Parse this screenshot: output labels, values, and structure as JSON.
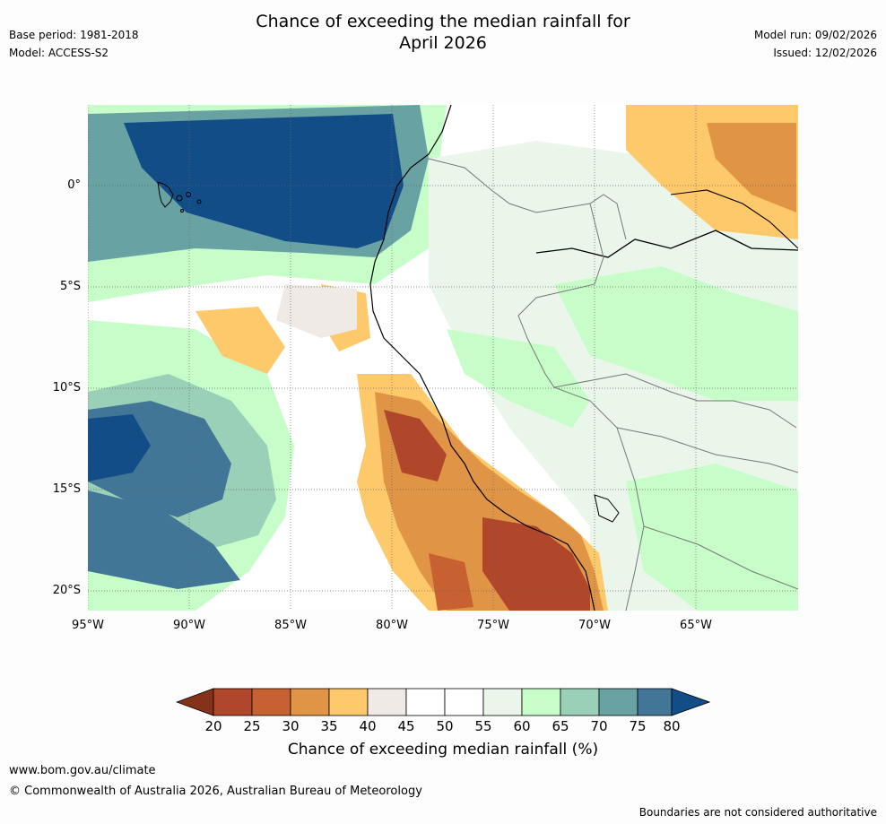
{
  "title_line1": "Chance of exceeding the median rainfall for",
  "title_line2": "April 2026",
  "meta": {
    "base_period": "Base period: 1981-2018",
    "model": "Model: ACCESS-S2",
    "model_run": "Model run: 09/02/2026",
    "issued": "Issued: 12/02/2026"
  },
  "axes": {
    "lat_labels": [
      "0°",
      "5°S",
      "10°S",
      "15°S",
      "20°S"
    ],
    "lon_labels": [
      "95°W",
      "90°W",
      "85°W",
      "80°W",
      "75°W",
      "70°W",
      "65°W"
    ]
  },
  "colorbar": {
    "ticks": [
      "20",
      "25",
      "30",
      "35",
      "40",
      "45",
      "50",
      "55",
      "60",
      "65",
      "70",
      "75",
      "80"
    ],
    "title": "Chance of exceeding median rainfall (%)",
    "colors": {
      "lt20": "#86321b",
      "20-25": "#b0462a",
      "25-30": "#c86131",
      "30-35": "#e09446",
      "35-40": "#fec96a",
      "40-45": "#efeae5",
      "45-50": "#ffffff",
      "50-55": "#ffffff",
      "55-60": "#eaf6ea",
      "60-65": "#c6fdc8",
      "65-70": "#9bd0b8",
      "70-75": "#69a2a3",
      "75-80": "#417696",
      "gt80": "#134d88"
    }
  },
  "footer": {
    "url": "www.bom.gov.au/climate",
    "copyright": "© Commonwealth of Australia 2026, Australian Bureau of Meteorology",
    "note": "Boundaries are not considered authoritative"
  }
}
